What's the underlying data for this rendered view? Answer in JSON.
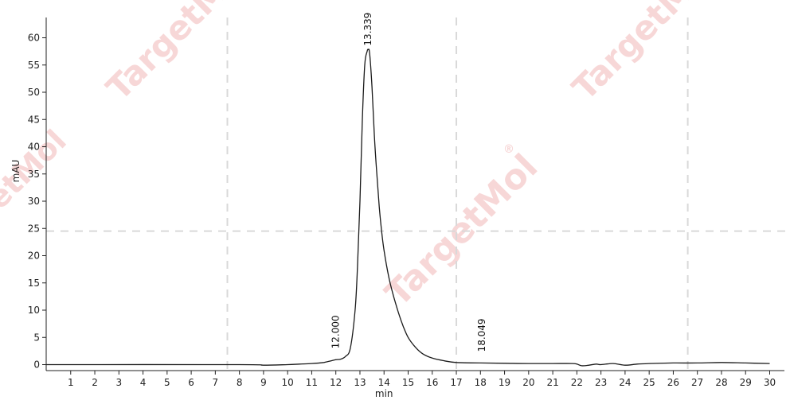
{
  "colors": {
    "trace": "#1a1a1a",
    "axis": "#222222",
    "gridline": "#d9d9d9",
    "watermark": "#f2b8b8"
  },
  "watermark": {
    "text": "TargetMol",
    "symbol": "®"
  },
  "chart_data": {
    "type": "line",
    "xlabel": "min",
    "ylabel": "mAU",
    "xlim": [
      0,
      30.5
    ],
    "ylim": [
      -1,
      63
    ],
    "x_ticks": [
      1,
      2,
      3,
      4,
      5,
      6,
      7,
      8,
      9,
      10,
      11,
      12,
      13,
      14,
      15,
      16,
      17,
      18,
      19,
      20,
      21,
      22,
      23,
      24,
      25,
      26,
      27,
      28,
      29,
      30
    ],
    "y_ticks": [
      0,
      5,
      10,
      15,
      20,
      25,
      30,
      35,
      40,
      45,
      50,
      55,
      60
    ],
    "grid": "dashed vertical lines at 7.5, 17, 26.6 min and a dashed horizontal line at 24.5 mAU",
    "grid_x": [
      7.5,
      17.0,
      26.6
    ],
    "grid_y": [
      24.5
    ],
    "series": [
      {
        "points": [
          [
            0.0,
            0.0
          ],
          [
            8.0,
            0.0
          ],
          [
            9.0,
            -0.1
          ],
          [
            10.0,
            0.0
          ],
          [
            10.5,
            0.1
          ],
          [
            11.0,
            0.2
          ],
          [
            11.5,
            0.4
          ],
          [
            11.8,
            0.7
          ],
          [
            12.0,
            0.9
          ],
          [
            12.2,
            1.0
          ],
          [
            12.4,
            1.5
          ],
          [
            12.6,
            3.0
          ],
          [
            12.8,
            10.0
          ],
          [
            12.9,
            18.0
          ],
          [
            13.0,
            30.0
          ],
          [
            13.1,
            45.0
          ],
          [
            13.2,
            55.0
          ],
          [
            13.3,
            57.5
          ],
          [
            13.339,
            57.8
          ],
          [
            13.4,
            57.2
          ],
          [
            13.5,
            51.0
          ],
          [
            13.6,
            42.0
          ],
          [
            13.7,
            35.0
          ],
          [
            13.8,
            29.0
          ],
          [
            13.9,
            24.5
          ],
          [
            14.0,
            21.0
          ],
          [
            14.2,
            16.0
          ],
          [
            14.4,
            12.5
          ],
          [
            14.6,
            9.5
          ],
          [
            14.8,
            7.0
          ],
          [
            15.0,
            5.0
          ],
          [
            15.3,
            3.2
          ],
          [
            15.6,
            2.0
          ],
          [
            16.0,
            1.2
          ],
          [
            16.5,
            0.7
          ],
          [
            17.0,
            0.4
          ],
          [
            18.0,
            0.3
          ],
          [
            19.0,
            0.25
          ],
          [
            20.0,
            0.2
          ],
          [
            21.0,
            0.2
          ],
          [
            21.8,
            0.2
          ],
          [
            22.0,
            0.1
          ],
          [
            22.2,
            -0.2
          ],
          [
            22.5,
            -0.1
          ],
          [
            22.8,
            0.1
          ],
          [
            23.0,
            0.0
          ],
          [
            23.5,
            0.2
          ],
          [
            24.0,
            -0.1
          ],
          [
            24.5,
            0.1
          ],
          [
            25.0,
            0.2
          ],
          [
            26.0,
            0.3
          ],
          [
            27.0,
            0.3
          ],
          [
            28.0,
            0.4
          ],
          [
            29.0,
            0.3
          ],
          [
            30.0,
            0.2
          ]
        ]
      }
    ],
    "annotations": [
      {
        "x": 12.0,
        "y": 0.9,
        "label": "12.000"
      },
      {
        "x": 13.339,
        "y": 57.8,
        "label": "13.339"
      },
      {
        "x": 18.049,
        "y": 0.3,
        "label": "18.049"
      }
    ]
  }
}
